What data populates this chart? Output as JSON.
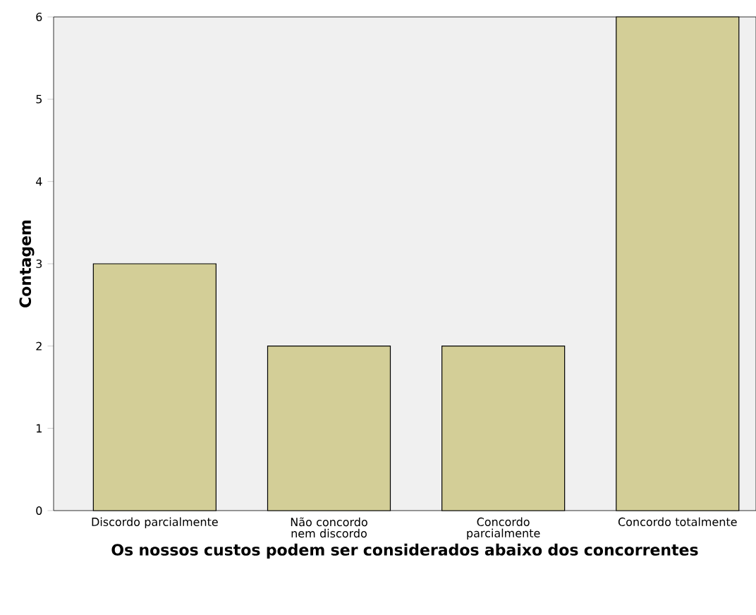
{
  "chart_data": {
    "type": "bar",
    "xlabel": "Os nossos custos podem ser considerados abaixo dos concorrentes",
    "ylabel": "Contagem",
    "categories": [
      "Discordo parcialmente",
      "Não concordo nem discordo",
      "Concordo parcialmente",
      "Concordo totalmente"
    ],
    "values": [
      3,
      2,
      2,
      6
    ],
    "color": "#d3ce97",
    "ylim": [
      0,
      6
    ],
    "yticks": [
      0,
      1,
      2,
      3,
      4,
      5,
      6
    ],
    "grid": false
  }
}
